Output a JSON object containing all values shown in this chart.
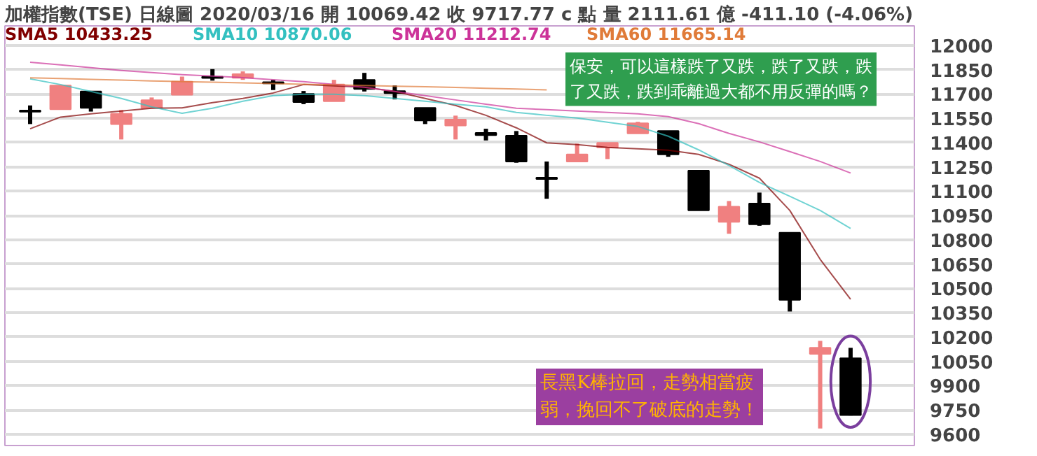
{
  "chart_data": {
    "type": "candlestick",
    "title": "加權指數(TSE)  日線圖  2020/03/16  開 10069.42  收 9717.77 c 點  量 2111.61 億  -411.10 (-4.06%)",
    "categories": [
      null,
      null,
      null,
      null,
      null,
      null,
      null,
      null,
      null,
      null,
      null,
      null,
      null,
      null,
      null,
      null,
      null,
      null,
      null,
      null,
      null,
      null,
      null,
      null,
      null,
      null,
      null,
      null
    ],
    "ohlc": [
      [
        11595,
        11629,
        11514,
        11590
      ],
      [
        11605,
        11755,
        11603,
        11752
      ],
      [
        11715,
        11715,
        11591,
        11614
      ],
      [
        11514,
        11600,
        11419,
        11577
      ],
      [
        11614,
        11678,
        11614,
        11661
      ],
      [
        11695,
        11807,
        11695,
        11776
      ],
      [
        11805,
        11853,
        11782,
        11798
      ],
      [
        11799,
        11839,
        11787,
        11822
      ],
      [
        11770,
        11787,
        11724,
        11765
      ],
      [
        11700,
        11718,
        11637,
        11649
      ],
      [
        11655,
        11787,
        11655,
        11758
      ],
      [
        11787,
        11830,
        11715,
        11730
      ],
      [
        11718,
        11752,
        11666,
        11705
      ],
      [
        11614,
        11614,
        11514,
        11536
      ],
      [
        11505,
        11566,
        11419,
        11542
      ],
      [
        11460,
        11485,
        11413,
        11445
      ],
      [
        11442,
        11471,
        11275,
        11283
      ],
      [
        11180,
        11283,
        11053,
        11175
      ],
      [
        11283,
        11393,
        11283,
        11327
      ],
      [
        11370,
        11398,
        11298,
        11398
      ],
      [
        11456,
        11528,
        11456,
        11519
      ],
      [
        11471,
        11471,
        11312,
        11327
      ],
      [
        11226,
        11226,
        10981,
        10981
      ],
      [
        10910,
        11039,
        10837,
        11004
      ],
      [
        11024,
        11091,
        10886,
        10895
      ],
      [
        10843,
        10843,
        10357,
        10429
      ],
      [
        10095,
        10176,
        9635,
        10133
      ],
      [
        10069,
        10133,
        9715,
        9718
      ]
    ],
    "colors": [
      "#000000",
      "#f08080",
      "#000000",
      "#f08080",
      "#f08080",
      "#f08080",
      "#000000",
      "#f08080",
      "#000000",
      "#000000",
      "#f08080",
      "#000000",
      "#000000",
      "#000000",
      "#f08080",
      "#000000",
      "#000000",
      "#000000",
      "#f08080",
      "#f08080",
      "#f08080",
      "#000000",
      "#000000",
      "#f08080",
      "#000000",
      "#000000",
      "#f08080",
      "#000000"
    ],
    "series": [
      {
        "name": "SMA5 10433.25",
        "color": "#800000",
        "type": "line",
        "values": [
          11485,
          11557,
          11577,
          11594,
          11612,
          11614,
          11646,
          11672,
          11706,
          11758,
          11750,
          11741,
          11715,
          11672,
          11629,
          11568,
          11491,
          11398,
          11387,
          11370,
          11361,
          11353,
          11327,
          11266,
          11180,
          10981,
          10679,
          10433
        ]
      },
      {
        "name": "SMA10 10870.06",
        "color": "#33c0c0",
        "type": "line",
        "values": [
          11793,
          11758,
          11715,
          11672,
          11620,
          11580,
          11612,
          11655,
          11689,
          11698,
          11698,
          11689,
          11672,
          11655,
          11637,
          11620,
          11586,
          11568,
          11551,
          11525,
          11499,
          11439,
          11355,
          11258,
          11154,
          11068,
          10981,
          10870
        ]
      },
      {
        "name": "SMA20 11212.74",
        "color": "#cc3399",
        "type": "line",
        "values": [
          11896,
          11879,
          11862,
          11845,
          11832,
          11819,
          11810,
          11801,
          11788,
          11776,
          11758,
          11741,
          11715,
          11689,
          11663,
          11637,
          11612,
          11603,
          11594,
          11586,
          11577,
          11560,
          11517,
          11456,
          11404,
          11344,
          11283,
          11212
        ]
      },
      {
        "name": "SMA60 11665.14",
        "color": "#e07b39",
        "type": "line",
        "values": [
          11800,
          11795,
          11790,
          11785,
          11780,
          11776,
          11772,
          11768,
          11764,
          11760,
          11756,
          11752,
          11748,
          11744,
          11740,
          11735,
          11730,
          11725,
          null,
          null,
          null,
          null,
          null,
          null,
          null,
          null,
          null,
          null
        ]
      }
    ],
    "ylim": [
      9530,
      12120
    ],
    "yticks": [
      9600,
      9750,
      9900,
      10050,
      10200,
      10350,
      10500,
      10650,
      10800,
      10950,
      11100,
      11250,
      11400,
      11550,
      11700,
      11850,
      12000
    ],
    "grid": "y",
    "tick_labels": "y",
    "annotations": [
      "保安，可以這樣跌了又跌，跌了又跌，跌了又跌，跌到乖離過大都不用反彈的嗎？",
      "長黑K棒拉回，走勢相當疲弱，挽回不了破底的走勢！"
    ]
  }
}
